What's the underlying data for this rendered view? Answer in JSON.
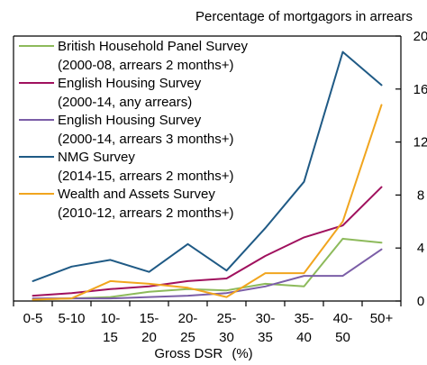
{
  "chart_data": {
    "type": "line",
    "ylabel": "Percentage of mortgagors in arrears",
    "xlabel": "Gross DSR",
    "xlabel_unit": "(%)",
    "categories": [
      [
        "0-5",
        ""
      ],
      [
        "5-10",
        ""
      ],
      [
        "10-",
        "15"
      ],
      [
        "15-",
        "20"
      ],
      [
        "20-",
        "25"
      ],
      [
        "25-",
        "30"
      ],
      [
        "30-",
        "35"
      ],
      [
        "35-",
        "40"
      ],
      [
        "40-",
        "50"
      ],
      [
        "50+",
        ""
      ]
    ],
    "ylim": [
      0,
      20
    ],
    "yticks": [
      0,
      4,
      8,
      12,
      16,
      20
    ],
    "ytick_labels": [
      "0",
      "4",
      "8",
      "12",
      "16",
      "20"
    ],
    "grid": false,
    "legend_position": "top-left",
    "series": [
      {
        "name": [
          "British Household Panel Survey",
          "(2000-08, arrears 2 months+)"
        ],
        "color": "#8dba5b",
        "values": [
          0.1,
          0.2,
          0.3,
          0.7,
          0.9,
          0.8,
          1.3,
          1.1,
          4.7,
          4.4
        ]
      },
      {
        "name": [
          "English Housing Survey",
          "(2000-14, any arrears)"
        ],
        "color": "#a0115e",
        "values": [
          0.4,
          0.6,
          0.9,
          1.1,
          1.5,
          1.7,
          3.4,
          4.8,
          5.7,
          8.6
        ]
      },
      {
        "name": [
          "English Housing Survey",
          "(2000-14, arrears 3 months+)"
        ],
        "color": "#7b5ea7",
        "values": [
          0.2,
          0.2,
          0.2,
          0.3,
          0.4,
          0.6,
          1.1,
          1.9,
          1.9,
          3.9
        ]
      },
      {
        "name": [
          "NMG Survey",
          "(2014-15, arrears 2 months+)"
        ],
        "color": "#1f5a85",
        "values": [
          1.5,
          2.6,
          3.1,
          2.2,
          4.3,
          2.3,
          5.5,
          9.0,
          18.8,
          16.3
        ]
      },
      {
        "name": [
          "Wealth and Assets Survey",
          "(2010-12, arrears 2 months+)"
        ],
        "color": "#f1a51e",
        "values": [
          0.1,
          0.2,
          1.5,
          1.3,
          1.0,
          0.3,
          2.1,
          2.1,
          6.0,
          14.8
        ]
      }
    ]
  }
}
